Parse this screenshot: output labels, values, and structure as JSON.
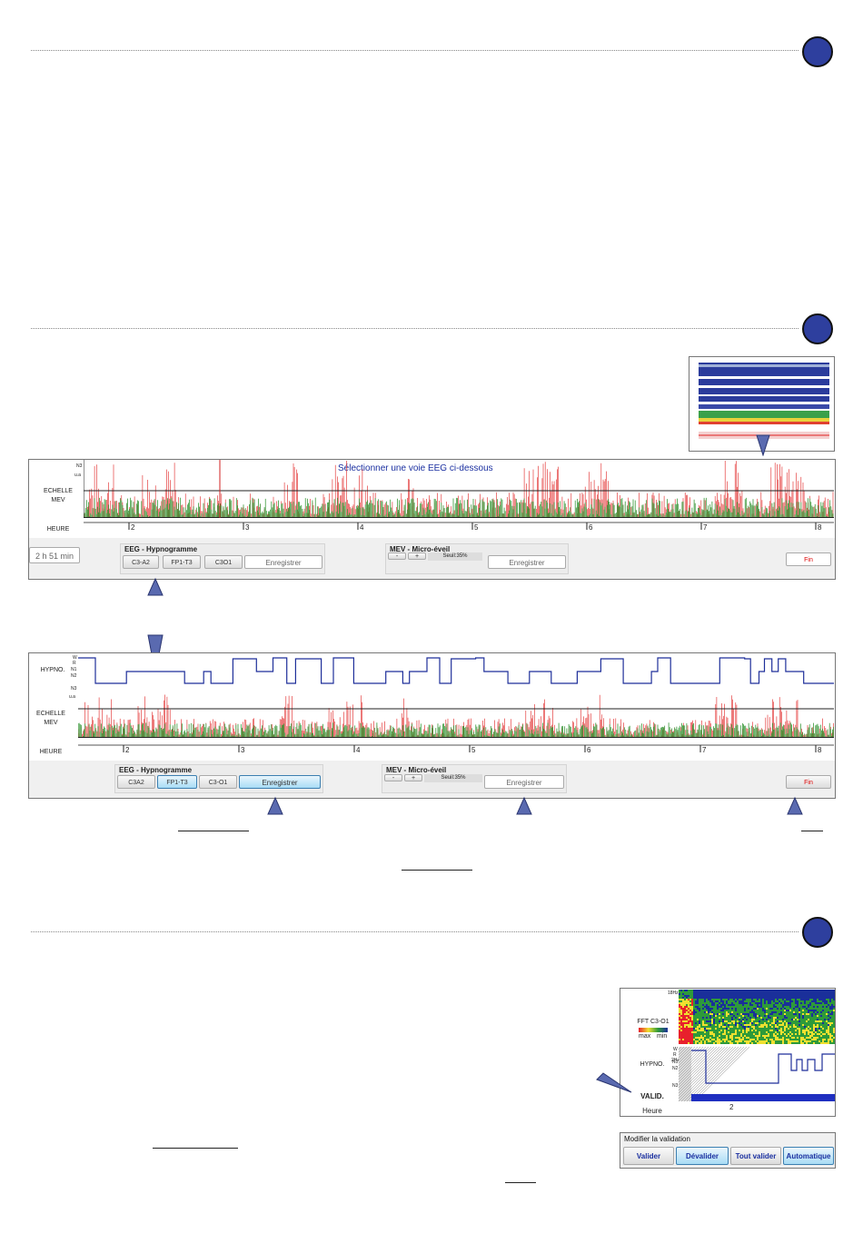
{
  "colors": {
    "accent": "#2e3f9e",
    "hypno": "#1e2f9a",
    "mev_red": "#e02020",
    "mev_green": "#1e8a1e",
    "validation_bar": "#1f2fc0"
  },
  "icons": [
    "step-badge-icon",
    "pointer-arrow-icon"
  ],
  "screen1": {
    "banner": "Sélectionner une voie EEG ci-dessous",
    "y_top": "N3",
    "y_thresh": "u.a",
    "echelle": "ECHELLE",
    "mev": "MEV",
    "heure": "HEURE",
    "hours": [
      "2",
      "3",
      "4",
      "5",
      "6",
      "7",
      "8"
    ],
    "duration": "2 h 51 min",
    "eeg_group": "EEG - Hypnogramme",
    "eeg_channels": [
      "C3-A2",
      "FP1-T3",
      "C3O1"
    ],
    "save": "Enregistrer",
    "mev_group": "MEV - Micro-éveil",
    "minus": "-",
    "plus": "+",
    "threshold": "Seuil:35%",
    "end": "Fin"
  },
  "screen2": {
    "hypno": "HYPNO.",
    "stages": [
      "W",
      "R",
      "N1",
      "N2",
      "N3"
    ],
    "y_thresh": "u.a",
    "echelle": "ECHELLE",
    "mev": "MEV",
    "heure": "HEURE",
    "hours": [
      "2",
      "3",
      "4",
      "5",
      "6",
      "7",
      "8"
    ],
    "eeg_group": "EEG - Hypnogramme",
    "eeg_channels": [
      "C3A2",
      "FP1-T3",
      "C3-O1"
    ],
    "save": "Enregistrer",
    "mev_group": "MEV - Micro-éveil",
    "minus": "-",
    "plus": "+",
    "threshold": "Seuil:35%",
    "end": "Fin"
  },
  "validation_panel": {
    "fft_top": "18Hz",
    "fft_bottom": "2Hz",
    "fft": "FFT C3-O1",
    "max": "max",
    "min": "min",
    "hypno": "HYPNO.",
    "stages": [
      "W",
      "R",
      "N1",
      "N2",
      "N3"
    ],
    "valid": "VALID.",
    "heure": "Heure",
    "hour": "2"
  },
  "modify_validation": {
    "title": "Modifier la validation",
    "buttons": [
      "Valider",
      "Dévalider",
      "Tout valider",
      "Automatique"
    ]
  }
}
